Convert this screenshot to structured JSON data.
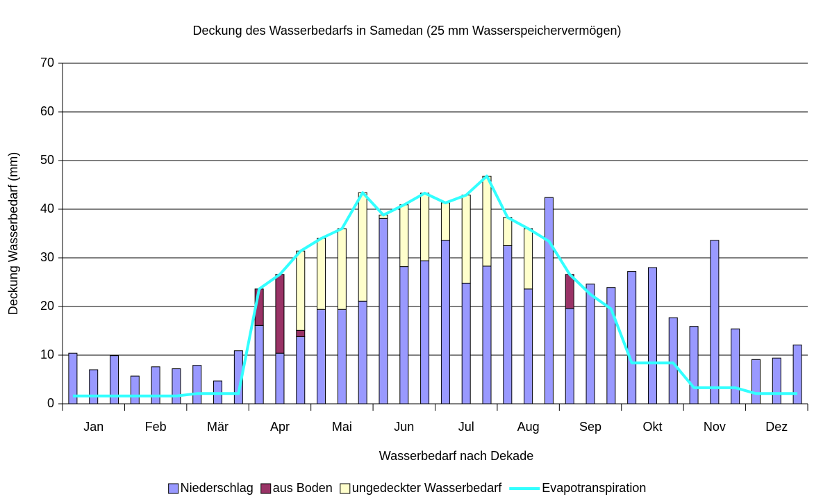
{
  "chart_data": {
    "type": "bar",
    "title": "Deckung des Wasserbedarfs in Samedan (25 mm Wasserspeichervermögen)",
    "xlabel": "Wasserbedarf nach Dekade",
    "ylabel": "Deckung Wasserbedarf (mm)",
    "stacked": true,
    "categories": [
      null,
      "Jan",
      null,
      null,
      "Feb",
      null,
      null,
      "Mär",
      null,
      null,
      "Apr",
      null,
      null,
      "Mai",
      null,
      null,
      "Jun",
      null,
      null,
      "Jul",
      null,
      null,
      "Aug",
      null,
      null,
      "Sep",
      null,
      null,
      "Okt",
      null,
      null,
      "Nov",
      null,
      null,
      "Dez",
      null
    ],
    "series": [
      {
        "name": "Niederschlag",
        "color": "#9999ff",
        "values": [
          10.4,
          7.0,
          9.9,
          5.7,
          7.6,
          7.2,
          7.9,
          4.7,
          10.9,
          16.1,
          10.4,
          13.8,
          19.4,
          19.4,
          21.1,
          38.1,
          28.2,
          29.4,
          33.6,
          24.8,
          28.3,
          32.5,
          23.6,
          42.4,
          19.6,
          24.6,
          23.9,
          27.2,
          28.0,
          17.7,
          15.9,
          33.6,
          15.4,
          9.1,
          9.4,
          12.1
        ]
      },
      {
        "name": "aus Boden",
        "color": "#993366",
        "values": [
          0,
          0,
          0,
          0,
          0,
          0,
          0,
          0,
          0,
          7.5,
          16.2,
          1.3,
          0,
          0,
          0,
          0,
          0,
          0,
          0,
          0,
          0,
          0,
          0,
          0,
          7.0,
          0,
          0,
          0,
          0,
          0,
          0,
          0,
          0,
          0,
          0,
          0
        ]
      },
      {
        "name": "ungedeckter Wasserbedarf",
        "color": "#ffffcc",
        "values": [
          0,
          0,
          0,
          0,
          0,
          0,
          0,
          0,
          0,
          0,
          0,
          16.3,
          14.6,
          16.6,
          22.3,
          0.7,
          12.7,
          13.9,
          7.7,
          18.1,
          18.5,
          5.8,
          12.4,
          0,
          0,
          0,
          0,
          0,
          0,
          0,
          0,
          0,
          0,
          0,
          0,
          0
        ]
      },
      {
        "name": "Evapotranspiration",
        "type": "line",
        "color": "#33ffff",
        "values": [
          1.6,
          1.6,
          1.6,
          1.6,
          1.6,
          1.6,
          2.1,
          2.1,
          2.1,
          23.6,
          26.6,
          31.4,
          34.0,
          36.0,
          43.4,
          38.8,
          40.9,
          43.3,
          41.3,
          42.9,
          46.8,
          38.3,
          36.0,
          33.4,
          26.6,
          22.5,
          19.5,
          8.4,
          8.4,
          8.4,
          3.3,
          3.3,
          3.3,
          2.1,
          2.1,
          2.1
        ]
      }
    ],
    "ylim": [
      0,
      70
    ],
    "yticks": [
      0,
      10,
      20,
      30,
      40,
      50,
      60,
      70
    ],
    "grid": true,
    "legend": "bottom"
  }
}
